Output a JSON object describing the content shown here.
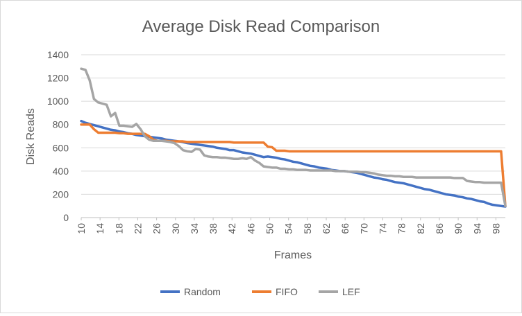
{
  "chart_data": {
    "type": "line",
    "title": "Average Disk Read Comparison",
    "xlabel": "Frames",
    "ylabel": "Disk Reads",
    "x_start": 10,
    "x_end": 100,
    "x_tick_labels": [
      "10",
      "14",
      "18",
      "22",
      "26",
      "30",
      "34",
      "38",
      "42",
      "46",
      "50",
      "54",
      "58",
      "62",
      "66",
      "70",
      "74",
      "78",
      "82",
      "86",
      "90",
      "94",
      "98"
    ],
    "ylim": [
      0,
      1400
    ],
    "y_ticks": [
      0,
      200,
      400,
      600,
      800,
      1000,
      1200,
      1400
    ],
    "grid": true,
    "legend_position": "bottom",
    "series": [
      {
        "name": "Random",
        "color": "#4472c4",
        "values": [
          830,
          815,
          805,
          795,
          785,
          775,
          765,
          755,
          750,
          740,
          735,
          725,
          720,
          710,
          705,
          700,
          695,
          690,
          685,
          680,
          670,
          665,
          660,
          655,
          650,
          640,
          635,
          630,
          625,
          620,
          615,
          610,
          600,
          595,
          590,
          580,
          580,
          570,
          560,
          555,
          550,
          540,
          530,
          520,
          525,
          520,
          515,
          505,
          500,
          490,
          480,
          475,
          465,
          455,
          445,
          440,
          430,
          425,
          420,
          410,
          405,
          400,
          400,
          395,
          390,
          385,
          375,
          365,
          355,
          345,
          340,
          330,
          325,
          315,
          305,
          300,
          295,
          285,
          275,
          265,
          255,
          245,
          240,
          230,
          220,
          210,
          200,
          195,
          190,
          180,
          175,
          165,
          160,
          150,
          140,
          135,
          120,
          110,
          105,
          100,
          95
        ]
      },
      {
        "name": "FIFO",
        "color": "#ed7d31",
        "values": [
          800,
          800,
          800,
          760,
          730,
          730,
          730,
          730,
          730,
          725,
          725,
          720,
          720,
          720,
          720,
          720,
          700,
          670,
          660,
          660,
          660,
          655,
          655,
          655,
          655,
          650,
          650,
          650,
          650,
          650,
          650,
          650,
          650,
          650,
          650,
          650,
          645,
          645,
          645,
          645,
          645,
          645,
          645,
          645,
          610,
          605,
          575,
          575,
          575,
          570,
          570,
          570,
          570,
          570,
          570,
          570,
          570,
          570,
          570,
          570,
          570,
          570,
          570,
          570,
          570,
          570,
          570,
          570,
          570,
          570,
          570,
          570,
          570,
          570,
          570,
          570,
          570,
          570,
          570,
          570,
          570,
          570,
          570,
          570,
          570,
          570,
          570,
          570,
          570,
          570,
          570,
          570,
          570,
          570,
          570,
          570,
          570,
          570,
          570,
          570,
          100
        ]
      },
      {
        "name": "LEF",
        "color": "#a5a5a5",
        "values": [
          1280,
          1270,
          1180,
          1020,
          990,
          980,
          970,
          870,
          900,
          790,
          790,
          785,
          780,
          805,
          760,
          700,
          670,
          660,
          660,
          660,
          655,
          650,
          640,
          615,
          580,
          570,
          565,
          590,
          585,
          535,
          525,
          520,
          520,
          515,
          515,
          510,
          505,
          505,
          510,
          505,
          520,
          490,
          470,
          440,
          435,
          430,
          430,
          420,
          420,
          415,
          415,
          410,
          410,
          410,
          405,
          405,
          405,
          405,
          405,
          405,
          400,
          400,
          400,
          395,
          395,
          395,
          390,
          390,
          385,
          380,
          370,
          365,
          360,
          360,
          355,
          355,
          350,
          350,
          350,
          345,
          345,
          345,
          345,
          345,
          345,
          345,
          345,
          345,
          340,
          340,
          340,
          315,
          310,
          305,
          305,
          300,
          300,
          300,
          300,
          300,
          100
        ]
      }
    ]
  }
}
